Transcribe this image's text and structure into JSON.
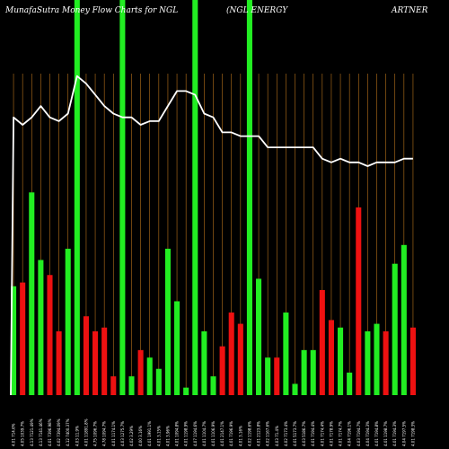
{
  "chart_data": {
    "type": "bar",
    "title": {
      "left": "MunafaSutra  Money Flow  Charts for NGL",
      "middle": "(NGL  ENERGY",
      "right": "ARTNER"
    },
    "background": "#000000",
    "grid": true,
    "grid_color": "#b8731b",
    "line_color": "#ffffff",
    "colors": {
      "up": "#22ee22",
      "down": "#ee1111"
    },
    "ylim": [
      0,
      100
    ],
    "line_ylim": [
      0,
      100
    ],
    "categories": [
      "4.01 714.6%",
      "4.05 1039.7%",
      "4.13 7121.49%",
      "4.13 7141.46%",
      "4.01 7396.98%",
      "4.02 7394.09%",
      "4.12 7400.37%",
      "4.03 11.9%",
      "4.01 11891.8%",
      "4.75 1096.7%",
      "4.78 1094.7%",
      "4.01 1174.1%",
      "4.03 1275.7%",
      "4.02 3.29%",
      "4.00 3.16%",
      "4.01 1991.1%",
      "4.01 3.15%",
      "4.01 3.96%",
      "4.01 1094.8%",
      "4.01 1198.9%",
      "4.07 1194.6%",
      "4.01 1104.7%",
      "4.01 1106.9%",
      "4.01 2147.1%",
      "4.01 7196.9%",
      "4.01 3.16%",
      "4.02 1198.6%",
      "4.01 2123.8%",
      "4.02 1167.6%",
      "4.03 71.4%",
      "4.02 7173.4%",
      "4.01 5173.7%",
      "4.03 5186.7%",
      "4.01 7194.4%",
      "4.01 7174.4%",
      "4.01 7178.9%",
      "4.01 7174.7%",
      "4.04 7196.1%",
      "4.03 7194.7%",
      "4.04 7194.3%",
      "4.01 7194.8%",
      "4.01 1198.7%",
      "4.01 7194.3%",
      "4.04 7197.5%",
      "4.01 7198.3%"
    ],
    "direction": [
      "up",
      "down",
      "up",
      "up",
      "down",
      "down",
      "up",
      "up",
      "down",
      "down",
      "down",
      "down",
      "up",
      "up",
      "down",
      "up",
      "up",
      "up",
      "up",
      "up",
      "up",
      "up",
      "up",
      "down",
      "down",
      "down",
      "up",
      "up",
      "up",
      "down",
      "up",
      "up",
      "up",
      "up",
      "down",
      "down",
      "up",
      "up",
      "down",
      "up",
      "up",
      "down",
      "up",
      "up",
      "down"
    ],
    "values": [
      29,
      30,
      54,
      36,
      32,
      17,
      39,
      100,
      21,
      17,
      18,
      5,
      100,
      5,
      12,
      10,
      7,
      39,
      25,
      2,
      100,
      17,
      5,
      13,
      22,
      19,
      100,
      31,
      10,
      10,
      22,
      3,
      12,
      12,
      28,
      20,
      18,
      6,
      50,
      17,
      19,
      17,
      35,
      40,
      18
    ],
    "line_values": [
      74,
      72,
      74,
      77,
      74,
      73,
      75,
      85,
      83,
      80,
      77,
      75,
      74,
      74,
      72,
      73,
      73,
      77,
      81,
      81,
      80,
      75,
      74,
      70,
      70,
      69,
      69,
      69,
      66,
      66,
      66,
      66,
      66,
      66,
      63,
      62,
      63,
      62,
      62,
      61,
      62,
      62,
      62,
      63,
      63
    ]
  }
}
